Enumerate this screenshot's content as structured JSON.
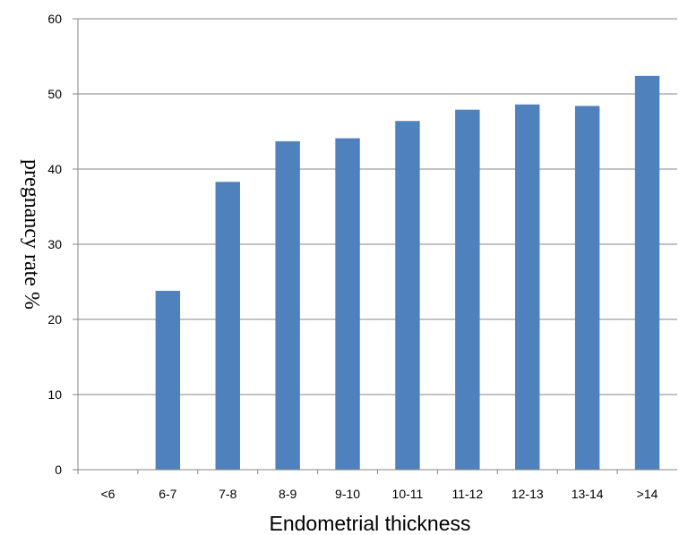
{
  "chart_data": {
    "type": "bar",
    "title": "",
    "xlabel": "Endometrial thickness",
    "ylabel": "pregnancy rate %",
    "categories": [
      "<6",
      "6-7",
      "7-8",
      "8-9",
      "9-10",
      "10-11",
      "11-12",
      "12-13",
      "13-14",
      ">14"
    ],
    "values": [
      0,
      23.8,
      38.3,
      43.7,
      44.1,
      46.4,
      47.9,
      48.6,
      48.4,
      52.4
    ],
    "ylim": [
      0,
      60
    ],
    "yticks": [
      "0",
      "10",
      "20",
      "30",
      "40",
      "50",
      "60"
    ],
    "grid": true,
    "legend": "none",
    "bar_color": "#4F81BD",
    "grid_color": "#868686"
  }
}
